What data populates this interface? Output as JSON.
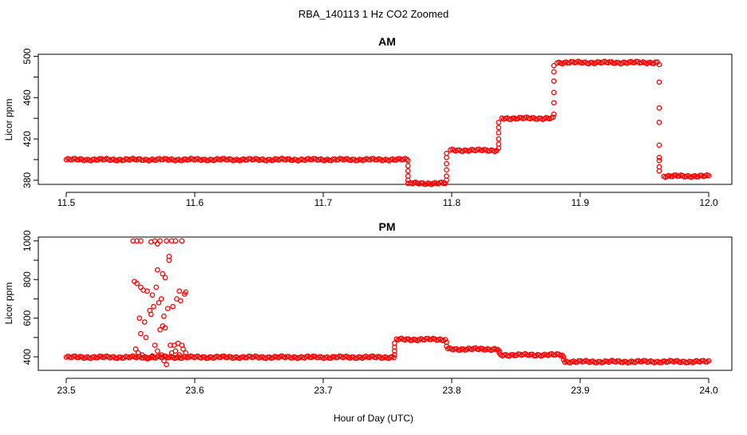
{
  "figure": {
    "title": "RBA_140113  1 Hz CO2 Zoomed",
    "xlabel": "Hour of Day (UTC)"
  },
  "colors": {
    "marker": "#ff0000",
    "axis": "#000000",
    "background": "#ffffff"
  },
  "chart_data": [
    {
      "type": "scatter",
      "title": "AM",
      "xlabel": "",
      "ylabel": "Licor ppm",
      "xlim": [
        11.5,
        12.0
      ],
      "ylim": [
        376,
        502
      ],
      "xticks": [
        11.5,
        11.6,
        11.7,
        11.8,
        11.9,
        12.0
      ],
      "xtick_labels": [
        "11.5",
        "11.6",
        "11.7",
        "11.8",
        "11.9",
        "12.0"
      ],
      "yticks": [
        380,
        420,
        460,
        500
      ],
      "ytick_labels": [
        "380",
        "420",
        "460",
        "500"
      ],
      "grid": false,
      "series": [
        {
          "marker": "open-circle",
          "color": "#ff0000",
          "segments": [
            {
              "x": [
                11.5,
                11.765
              ],
              "y": 400
            },
            {
              "x": [
                11.768,
                11.795
              ],
              "y": 377
            },
            {
              "x": [
                11.799,
                11.835
              ],
              "y": 409
            },
            {
              "x": [
                11.839,
                11.879
              ],
              "y": 440
            },
            {
              "x": [
                11.882,
                11.96
              ],
              "y": 494
            },
            {
              "x": [
                11.965,
                12.0
              ],
              "y": 384
            }
          ],
          "transitions": [
            {
              "x": 11.766,
              "y": [
                377,
                380,
                384,
                389,
                394,
                399
              ]
            },
            {
              "x": 11.796,
              "y": [
                380,
                384,
                390,
                396,
                402,
                406
              ]
            },
            {
              "x": 11.8365,
              "y": [
                411,
                415,
                420,
                426,
                431,
                436
              ]
            },
            {
              "x": 11.8795,
              "y": [
                444,
                455,
                465,
                476,
                485,
                491
              ]
            },
            {
              "x": 11.9615,
              "y": [
                492,
                475,
                450,
                436,
                414,
                402,
                399,
                393,
                389
              ]
            }
          ]
        }
      ]
    },
    {
      "type": "scatter",
      "title": "PM",
      "xlabel": "",
      "ylabel": "Licor ppm",
      "xlim": [
        23.5,
        24.0
      ],
      "ylim": [
        330,
        1020
      ],
      "xticks": [
        23.5,
        23.6,
        23.7,
        23.8,
        23.9,
        24.0
      ],
      "xtick_labels": [
        "23.5",
        "23.6",
        "23.7",
        "23.8",
        "23.9",
        "24.0"
      ],
      "yticks": [
        400,
        600,
        800,
        1000
      ],
      "ytick_labels": [
        "400",
        "600",
        "800",
        "1000"
      ],
      "grid": false,
      "series": [
        {
          "marker": "open-circle",
          "color": "#ff0000",
          "segments": [
            {
              "x": [
                23.5,
                23.755
              ],
              "y": 398
            },
            {
              "x": [
                23.757,
                23.795
              ],
              "y": 490
            },
            {
              "x": [
                23.797,
                23.836
              ],
              "y": 440
            },
            {
              "x": [
                23.838,
                23.886
              ],
              "y": 410
            },
            {
              "x": [
                23.888,
                24.0
              ],
              "y": 375
            }
          ],
          "transitions": [
            {
              "x": 23.7555,
              "y": [
                410,
                430,
                450,
                470
              ]
            },
            {
              "x": 23.796,
              "y": [
                475,
                455
              ]
            },
            {
              "x": 23.837,
              "y": [
                430,
                420
              ]
            },
            {
              "x": 23.887,
              "y": [
                400,
                385
              ]
            }
          ],
          "scatter_points": [
            [
              23.552,
              1000
            ],
            [
              23.555,
              1000
            ],
            [
              23.558,
              1000
            ],
            [
              23.566,
              995
            ],
            [
              23.569,
              1000
            ],
            [
              23.571,
              985
            ],
            [
              23.573,
              1000
            ],
            [
              23.578,
              1000
            ],
            [
              23.582,
              1000
            ],
            [
              23.585,
              1000
            ],
            [
              23.59,
              1000
            ],
            [
              23.553,
              790
            ],
            [
              23.555,
              780
            ],
            [
              23.558,
              760
            ],
            [
              23.56,
              745
            ],
            [
              23.563,
              740
            ],
            [
              23.567,
              720
            ],
            [
              23.57,
              760
            ],
            [
              23.575,
              830
            ],
            [
              23.577,
              810
            ],
            [
              23.571,
              850
            ],
            [
              23.58,
              900
            ],
            [
              23.58,
              920
            ],
            [
              23.592,
              725
            ],
            [
              23.593,
              735
            ],
            [
              23.588,
              740
            ],
            [
              23.557,
              600
            ],
            [
              23.561,
              580
            ],
            [
              23.565,
              640
            ],
            [
              23.568,
              660
            ],
            [
              23.572,
              680
            ],
            [
              23.576,
              610
            ],
            [
              23.579,
              650
            ],
            [
              23.583,
              660
            ],
            [
              23.586,
              700
            ],
            [
              23.589,
              690
            ],
            [
              23.574,
              700
            ],
            [
              23.566,
              620
            ],
            [
              23.558,
              520
            ],
            [
              23.562,
              500
            ],
            [
              23.569,
              460
            ],
            [
              23.573,
              540
            ],
            [
              23.575,
              560
            ],
            [
              23.577,
              550
            ],
            [
              23.581,
              460
            ],
            [
              23.584,
              460
            ],
            [
              23.587,
              470
            ],
            [
              23.59,
              460
            ],
            [
              23.554,
              440
            ],
            [
              23.556,
              420
            ],
            [
              23.559,
              410
            ],
            [
              23.563,
              390
            ],
            [
              23.567,
              405
            ],
            [
              23.571,
              430
            ],
            [
              23.574,
              410
            ],
            [
              23.576,
              380
            ],
            [
              23.578,
              360
            ],
            [
              23.582,
              420
            ],
            [
              23.585,
              430
            ],
            [
              23.588,
              410
            ],
            [
              23.591,
              440
            ],
            [
              23.593,
              420
            ]
          ]
        }
      ]
    }
  ]
}
